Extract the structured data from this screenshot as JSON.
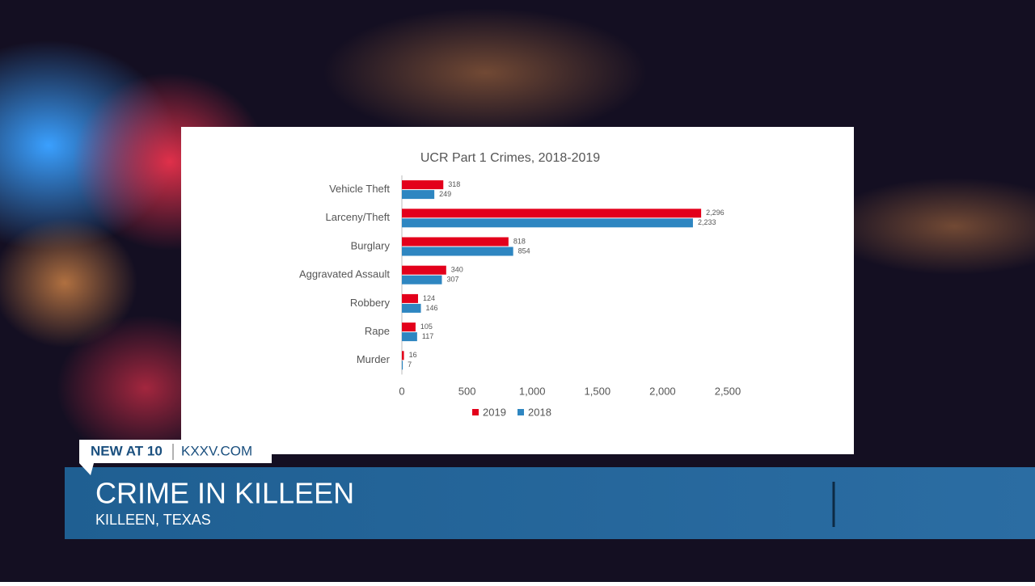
{
  "chart_data": {
    "type": "hbar",
    "title": "UCR Part 1 Crimes, 2018-2019",
    "categories": [
      "Vehicle Theft",
      "Larceny/Theft",
      "Burglary",
      "Aggravated Assault",
      "Robbery",
      "Rape",
      "Murder"
    ],
    "series": [
      {
        "name": "2019",
        "color": "#e3001b",
        "values": [
          318,
          2296,
          818,
          340,
          124,
          105,
          16
        ],
        "value_labels": [
          "318",
          "2,296",
          "818",
          "340",
          "124",
          "105",
          "16"
        ]
      },
      {
        "name": "2018",
        "color": "#2e86c1",
        "values": [
          249,
          2233,
          854,
          307,
          146,
          117,
          7
        ],
        "value_labels": [
          "249",
          "2,233",
          "854",
          "307",
          "146",
          "117",
          "7"
        ]
      }
    ],
    "xlim": [
      0,
      2500
    ],
    "xticks": [
      0,
      500,
      {
        "value": 1000,
        "label": "1,000"
      },
      {
        "value": 1500,
        "label": "1,500"
      },
      {
        "value": 2000,
        "label": "2,000"
      },
      {
        "value": 2500,
        "label": "2,500"
      }
    ],
    "grid": false,
    "legend": "bottom"
  },
  "lower_third": {
    "tag": "NEW AT 10",
    "site": "KXXV.COM",
    "headline": "CRIME IN KILLEEN",
    "location": "KILLEEN, TEXAS"
  }
}
